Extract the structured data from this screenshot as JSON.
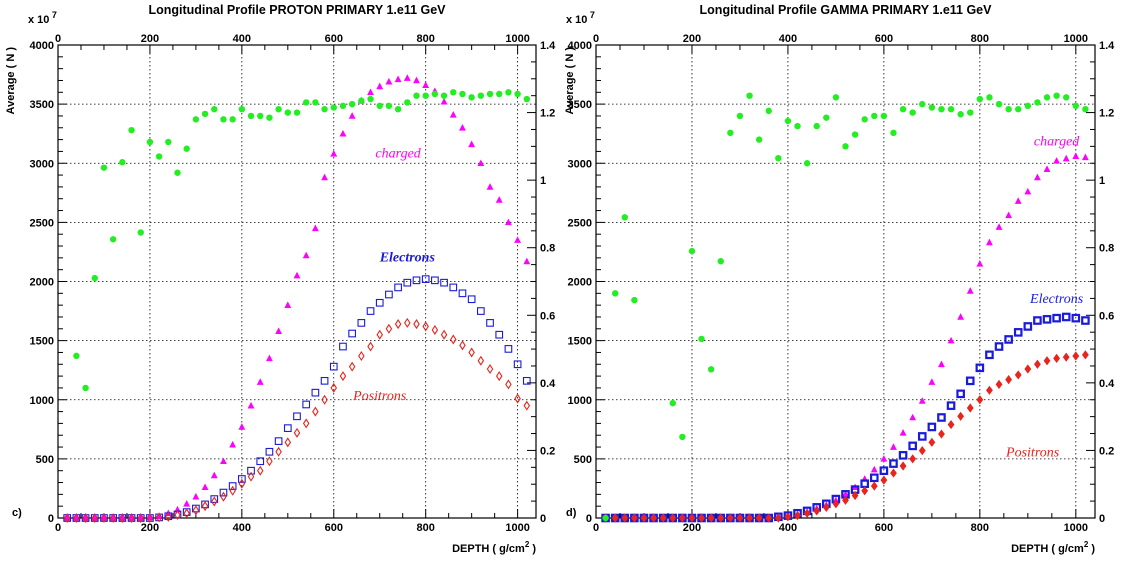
{
  "chart_data": [
    {
      "type": "scatter",
      "panel_label": "c)",
      "title": "Longitudinal Profile PROTON PRIMARY 1.e11 GeV",
      "xlabel": "DEPTH ( g/cm",
      "xlabel_sup": "2",
      "xlabel_end": " )",
      "ylabel": "Average ( N )",
      "y_multiplier": "x 10",
      "y_multiplier_exp": "7",
      "xlim": [
        0,
        1040
      ],
      "ylim": [
        0,
        4000
      ],
      "right_ylim": [
        0,
        1.4
      ],
      "grid": true,
      "x_ticks": [
        0,
        200,
        400,
        600,
        800,
        1000
      ],
      "y_ticks": [
        0,
        500,
        1000,
        1500,
        2000,
        2500,
        3000,
        3500,
        4000
      ],
      "right_ticks": [
        0,
        0.2,
        0.4,
        0.6,
        0.8,
        1,
        1.2,
        1.4
      ],
      "series": [
        {
          "name": "charged",
          "color": "#ff00ff",
          "marker": "triangle",
          "axis": "left",
          "label_at": [
            740,
            3050
          ],
          "x": [
            20,
            40,
            60,
            80,
            100,
            120,
            140,
            160,
            180,
            200,
            220,
            240,
            260,
            280,
            300,
            320,
            340,
            360,
            380,
            400,
            420,
            440,
            460,
            480,
            500,
            520,
            540,
            560,
            580,
            600,
            620,
            640,
            660,
            680,
            700,
            720,
            740,
            760,
            780,
            800,
            820,
            840,
            860,
            880,
            900,
            920,
            940,
            960,
            980,
            1000,
            1020
          ],
          "y": [
            0,
            0,
            0,
            0,
            0,
            0,
            0,
            0,
            0,
            5,
            15,
            40,
            70,
            120,
            180,
            260,
            360,
            480,
            620,
            770,
            950,
            1150,
            1350,
            1580,
            1800,
            2050,
            2220,
            2450,
            2880,
            3080,
            3250,
            3400,
            3530,
            3600,
            3650,
            3690,
            3710,
            3720,
            3700,
            3660,
            3610,
            3520,
            3410,
            3300,
            3160,
            3000,
            2800,
            2690,
            2500,
            2350,
            2170
          ]
        },
        {
          "name": "Electrons",
          "color": "#1a1adc",
          "marker": "open-square",
          "axis": "left",
          "label_at": [
            760,
            2170
          ],
          "x": [
            20,
            40,
            60,
            80,
            100,
            120,
            140,
            160,
            180,
            200,
            220,
            240,
            260,
            280,
            300,
            320,
            340,
            360,
            380,
            400,
            420,
            440,
            460,
            480,
            500,
            520,
            540,
            560,
            580,
            600,
            620,
            640,
            660,
            680,
            700,
            720,
            740,
            760,
            780,
            800,
            820,
            840,
            860,
            880,
            900,
            920,
            940,
            960,
            980,
            1000,
            1020
          ],
          "y": [
            0,
            0,
            0,
            0,
            0,
            0,
            0,
            0,
            0,
            0,
            5,
            15,
            30,
            50,
            80,
            115,
            160,
            215,
            270,
            330,
            400,
            480,
            560,
            650,
            760,
            860,
            960,
            1060,
            1160,
            1280,
            1450,
            1560,
            1650,
            1750,
            1820,
            1890,
            1950,
            1990,
            2010,
            2020,
            2010,
            1990,
            1950,
            1900,
            1850,
            1750,
            1650,
            1550,
            1430,
            1300,
            1160
          ]
        },
        {
          "name": "Positrons",
          "color": "#e8241c",
          "marker": "open-diamond",
          "axis": "left",
          "label_at": [
            700,
            1000
          ],
          "x": [
            20,
            40,
            60,
            80,
            100,
            120,
            140,
            160,
            180,
            200,
            220,
            240,
            260,
            280,
            300,
            320,
            340,
            360,
            380,
            400,
            420,
            440,
            460,
            480,
            500,
            520,
            540,
            560,
            580,
            600,
            620,
            640,
            660,
            680,
            700,
            720,
            740,
            760,
            780,
            800,
            820,
            840,
            860,
            880,
            900,
            920,
            940,
            960,
            980,
            1000,
            1020
          ],
          "y": [
            0,
            0,
            0,
            0,
            0,
            0,
            0,
            0,
            0,
            0,
            5,
            10,
            25,
            40,
            65,
            100,
            140,
            180,
            230,
            290,
            350,
            400,
            480,
            560,
            640,
            720,
            800,
            900,
            1000,
            1100,
            1200,
            1280,
            1370,
            1450,
            1550,
            1600,
            1640,
            1650,
            1640,
            1620,
            1590,
            1550,
            1510,
            1460,
            1400,
            1330,
            1260,
            1200,
            1130,
            1010,
            950
          ]
        },
        {
          "name": "",
          "color": "#22ee22",
          "marker": "circle",
          "axis": "right",
          "x": [
            40,
            60,
            80,
            100,
            120,
            140,
            160,
            180,
            200,
            220,
            240,
            260,
            280,
            300,
            320,
            340,
            360,
            380,
            400,
            420,
            440,
            460,
            480,
            500,
            520,
            540,
            560,
            580,
            600,
            620,
            640,
            660,
            680,
            700,
            720,
            740,
            760,
            780,
            800,
            820,
            840,
            860,
            880,
            900,
            920,
            940,
            960,
            980,
            1000,
            1020
          ],
          "y": [
            0.48,
            0.385,
            0.71,
            1.037,
            0.825,
            1.053,
            1.148,
            0.845,
            1.113,
            1.07,
            1.113,
            1.022,
            1.093,
            1.18,
            1.196,
            1.21,
            1.18,
            1.18,
            1.21,
            1.19,
            1.19,
            1.185,
            1.21,
            1.2,
            1.2,
            1.23,
            1.23,
            1.21,
            1.215,
            1.22,
            1.225,
            1.235,
            1.24,
            1.22,
            1.22,
            1.21,
            1.23,
            1.25,
            1.25,
            1.255,
            1.25,
            1.26,
            1.255,
            1.245,
            1.25,
            1.255,
            1.255,
            1.26,
            1.255,
            1.24
          ]
        }
      ]
    },
    {
      "type": "scatter",
      "panel_label": "d)",
      "title": "Longitudinal Profile GAMMA PRIMARY 1.e11 GeV",
      "xlabel": "DEPTH ( g/cm",
      "xlabel_sup": "2",
      "xlabel_end": " )",
      "ylabel": "Average ( N )",
      "y_multiplier": "x 10",
      "y_multiplier_exp": "7",
      "xlim": [
        0,
        1040
      ],
      "ylim": [
        0,
        4000
      ],
      "right_ylim": [
        0,
        1.4
      ],
      "grid": true,
      "x_ticks": [
        0,
        200,
        400,
        600,
        800,
        1000
      ],
      "y_ticks": [
        0,
        500,
        1000,
        1500,
        2000,
        2500,
        3000,
        3500,
        4000
      ],
      "right_ticks": [
        0,
        0.2,
        0.4,
        0.6,
        0.8,
        1,
        1.2,
        1.4
      ],
      "series": [
        {
          "name": "charged",
          "color": "#ff00ff",
          "marker": "triangle",
          "axis": "left",
          "label_at": [
            960,
            3150
          ],
          "x": [
            20,
            40,
            60,
            80,
            100,
            120,
            140,
            160,
            180,
            200,
            220,
            240,
            260,
            280,
            300,
            320,
            340,
            360,
            380,
            400,
            420,
            440,
            460,
            480,
            500,
            520,
            540,
            560,
            580,
            600,
            620,
            640,
            660,
            680,
            700,
            720,
            740,
            760,
            780,
            800,
            820,
            840,
            860,
            880,
            900,
            920,
            940,
            960,
            980,
            1000,
            1020
          ],
          "y": [
            0,
            0,
            0,
            0,
            0,
            0,
            0,
            0,
            0,
            0,
            0,
            0,
            0,
            0,
            0,
            0,
            0,
            0,
            0,
            10,
            30,
            50,
            80,
            110,
            150,
            200,
            260,
            330,
            410,
            500,
            600,
            720,
            850,
            990,
            1150,
            1300,
            1500,
            1700,
            1920,
            2150,
            2330,
            2460,
            2560,
            2680,
            2760,
            2880,
            2950,
            3020,
            3040,
            3060,
            3050
          ]
        },
        {
          "name": "Electrons",
          "color": "#1a1adc",
          "marker": "thick-square",
          "axis": "left",
          "label_at": [
            960,
            1820
          ],
          "x": [
            20,
            40,
            60,
            80,
            100,
            120,
            140,
            160,
            180,
            200,
            220,
            240,
            260,
            280,
            300,
            320,
            340,
            360,
            380,
            400,
            420,
            440,
            460,
            480,
            500,
            520,
            540,
            560,
            580,
            600,
            620,
            640,
            660,
            680,
            700,
            720,
            740,
            760,
            780,
            800,
            820,
            840,
            860,
            880,
            900,
            920,
            940,
            960,
            980,
            1000,
            1020
          ],
          "y": [
            0,
            0,
            0,
            0,
            0,
            0,
            0,
            0,
            0,
            0,
            0,
            0,
            0,
            0,
            0,
            0,
            0,
            0,
            10,
            20,
            40,
            60,
            90,
            120,
            160,
            200,
            240,
            290,
            340,
            400,
            460,
            530,
            610,
            690,
            770,
            850,
            950,
            1050,
            1160,
            1270,
            1380,
            1450,
            1510,
            1570,
            1620,
            1670,
            1680,
            1690,
            1700,
            1690,
            1670
          ]
        },
        {
          "name": "Positrons",
          "color": "#e8241c",
          "marker": "filled-diamond",
          "axis": "left",
          "label_at": [
            910,
            520
          ],
          "x": [
            20,
            40,
            60,
            80,
            100,
            120,
            140,
            160,
            180,
            200,
            220,
            240,
            260,
            280,
            300,
            320,
            340,
            360,
            380,
            400,
            420,
            440,
            460,
            480,
            500,
            520,
            540,
            560,
            580,
            600,
            620,
            640,
            660,
            680,
            700,
            720,
            740,
            760,
            780,
            800,
            820,
            840,
            860,
            880,
            900,
            920,
            940,
            960,
            980,
            1000,
            1020
          ],
          "y": [
            0,
            0,
            0,
            0,
            0,
            0,
            0,
            0,
            0,
            0,
            0,
            0,
            0,
            0,
            0,
            0,
            0,
            0,
            0,
            10,
            20,
            40,
            60,
            90,
            120,
            150,
            190,
            230,
            270,
            320,
            380,
            440,
            500,
            570,
            640,
            710,
            790,
            860,
            930,
            1000,
            1080,
            1130,
            1170,
            1210,
            1260,
            1300,
            1330,
            1350,
            1360,
            1370,
            1380
          ]
        },
        {
          "name": "",
          "color": "#22ee22",
          "marker": "circle",
          "axis": "right",
          "x": [
            20,
            40,
            60,
            80,
            160,
            180,
            200,
            220,
            240,
            260,
            280,
            300,
            320,
            340,
            360,
            380,
            400,
            420,
            440,
            460,
            480,
            500,
            520,
            540,
            560,
            580,
            600,
            620,
            640,
            660,
            680,
            700,
            720,
            740,
            760,
            780,
            800,
            820,
            840,
            860,
            880,
            900,
            920,
            940,
            960,
            980,
            1000,
            1020
          ],
          "y": [
            0,
            0.665,
            0.89,
            0.645,
            0.34,
            0.24,
            0.79,
            0.53,
            0.44,
            0.76,
            1.14,
            1.19,
            1.25,
            1.12,
            1.205,
            1.065,
            1.175,
            1.16,
            1.05,
            1.16,
            1.185,
            1.245,
            1.1,
            1.135,
            1.18,
            1.19,
            1.19,
            1.14,
            1.21,
            1.2,
            1.225,
            1.215,
            1.21,
            1.21,
            1.195,
            1.2,
            1.24,
            1.245,
            1.225,
            1.21,
            1.21,
            1.22,
            1.23,
            1.245,
            1.25,
            1.245,
            1.22,
            1.21
          ]
        }
      ]
    }
  ]
}
